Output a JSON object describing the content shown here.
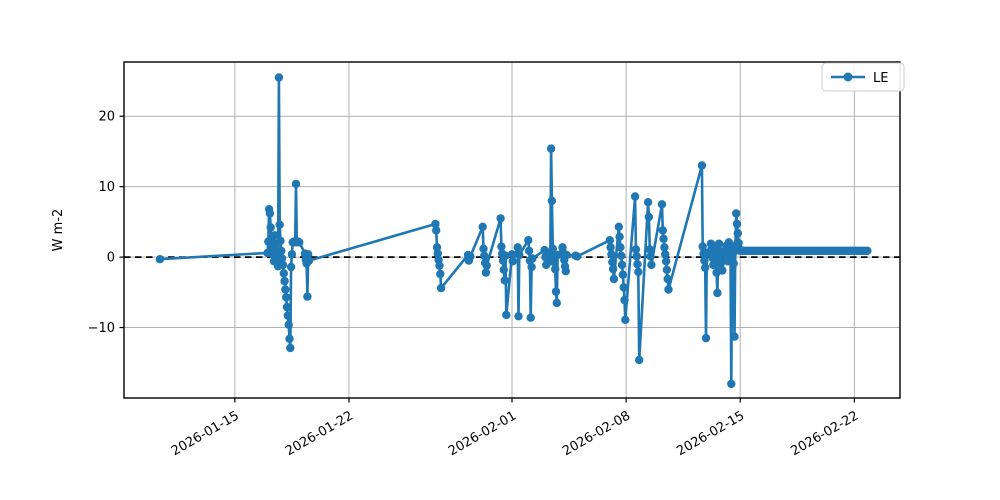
{
  "figure": {
    "background": "#ffffff",
    "legend": {
      "label": "LE",
      "position": "upper right"
    }
  },
  "chart_data": {
    "type": "line",
    "title": "",
    "xlabel": "",
    "ylabel": "W m-2",
    "grid": true,
    "grid_color": "#b0b0b0",
    "x_unit": "days since 2026-01-01",
    "xlim": [
      7.2,
      54.8
    ],
    "ylim": [
      -20.0,
      27.7
    ],
    "yticks": [
      {
        "v": -10,
        "label": "−10"
      },
      {
        "v": 0,
        "label": "0"
      },
      {
        "v": 10,
        "label": "10"
      },
      {
        "v": 20,
        "label": "20"
      }
    ],
    "xticks": [
      {
        "v": 14,
        "label": "2026-01-15"
      },
      {
        "v": 21,
        "label": "2026-01-22"
      },
      {
        "v": 31,
        "label": "2026-02-01"
      },
      {
        "v": 38,
        "label": "2026-02-08"
      },
      {
        "v": 45,
        "label": "2026-02-15"
      },
      {
        "v": 52,
        "label": "2026-02-22"
      }
    ],
    "zero_line": {
      "value": 0,
      "style": "dashed",
      "color": "#000000"
    },
    "series": [
      {
        "name": "LE",
        "color": "#1f77b4",
        "marker": "circle",
        "points": [
          [
            9.4,
            -0.3
          ],
          [
            16.0,
            0.6
          ],
          [
            16.05,
            2.2
          ],
          [
            16.1,
            6.8
          ],
          [
            16.15,
            6.2
          ],
          [
            16.2,
            4.2
          ],
          [
            16.25,
            2.6
          ],
          [
            16.3,
            1.2
          ],
          [
            16.35,
            0.3
          ],
          [
            16.4,
            -0.6
          ],
          [
            16.45,
            3.1
          ],
          [
            16.5,
            1.6
          ],
          [
            16.55,
            0.4
          ],
          [
            16.6,
            -0.4
          ],
          [
            16.65,
            -1.3
          ],
          [
            16.7,
            25.5
          ],
          [
            16.75,
            4.6
          ],
          [
            16.8,
            2.3
          ],
          [
            16.85,
            0.9
          ],
          [
            16.9,
            -0.2
          ],
          [
            16.95,
            -1.1
          ],
          [
            17.0,
            -2.3
          ],
          [
            17.05,
            -3.4
          ],
          [
            17.1,
            -4.6
          ],
          [
            17.15,
            -5.7
          ],
          [
            17.2,
            -7.1
          ],
          [
            17.25,
            -8.3
          ],
          [
            17.3,
            -9.6
          ],
          [
            17.35,
            -11.6
          ],
          [
            17.4,
            -12.9
          ],
          [
            17.45,
            -1.4
          ],
          [
            17.5,
            0.4
          ],
          [
            17.55,
            2.1
          ],
          [
            17.62,
            2.2
          ],
          [
            17.7,
            2.1
          ],
          [
            17.75,
            10.4
          ],
          [
            17.8,
            2.1
          ],
          [
            17.88,
            2.2
          ],
          [
            17.95,
            2.1
          ],
          [
            18.3,
            0.5
          ],
          [
            18.35,
            -0.4
          ],
          [
            18.4,
            -0.9
          ],
          [
            18.45,
            -5.6
          ],
          [
            18.5,
            0.4
          ],
          [
            18.55,
            -0.5
          ],
          [
            26.3,
            4.7
          ],
          [
            26.35,
            3.8
          ],
          [
            26.4,
            1.4
          ],
          [
            26.45,
            0.5
          ],
          [
            26.5,
            -0.4
          ],
          [
            26.55,
            -1.2
          ],
          [
            26.6,
            -2.4
          ],
          [
            26.65,
            -4.4
          ],
          [
            28.3,
            0.3
          ],
          [
            28.35,
            -0.5
          ],
          [
            28.45,
            0.1
          ],
          [
            29.2,
            4.3
          ],
          [
            29.25,
            1.2
          ],
          [
            29.3,
            0.2
          ],
          [
            29.35,
            -0.8
          ],
          [
            29.4,
            -2.2
          ],
          [
            29.45,
            -1.2
          ],
          [
            30.3,
            5.5
          ],
          [
            30.35,
            1.5
          ],
          [
            30.4,
            0.5
          ],
          [
            30.45,
            -0.5
          ],
          [
            30.5,
            -1.8
          ],
          [
            30.55,
            -3.3
          ],
          [
            30.6,
            0.2
          ],
          [
            30.65,
            -8.2
          ],
          [
            31.0,
            0.4
          ],
          [
            31.05,
            -0.6
          ],
          [
            31.35,
            1.4
          ],
          [
            31.4,
            -8.4
          ],
          [
            31.45,
            0.3
          ],
          [
            32.0,
            2.4
          ],
          [
            32.05,
            0.9
          ],
          [
            32.1,
            -0.5
          ],
          [
            32.15,
            -8.6
          ],
          [
            32.2,
            -1.4
          ],
          [
            32.25,
            -0.2
          ],
          [
            33.0,
            1.0
          ],
          [
            33.05,
            0.0
          ],
          [
            33.1,
            -1.1
          ],
          [
            33.3,
            0.6
          ],
          [
            33.35,
            -0.6
          ],
          [
            33.4,
            15.4
          ],
          [
            33.45,
            8.0
          ],
          [
            33.5,
            1.2
          ],
          [
            33.55,
            0.3
          ],
          [
            33.6,
            -0.7
          ],
          [
            33.65,
            -1.7
          ],
          [
            33.7,
            -4.9
          ],
          [
            33.75,
            -6.5
          ],
          [
            33.8,
            0.3
          ],
          [
            34.1,
            1.4
          ],
          [
            34.15,
            0.6
          ],
          [
            34.2,
            -0.4
          ],
          [
            34.25,
            -1.3
          ],
          [
            34.3,
            -2.0
          ],
          [
            34.35,
            0.3
          ],
          [
            34.9,
            0.2
          ],
          [
            35.0,
            0.1
          ],
          [
            37.0,
            2.4
          ],
          [
            37.05,
            1.4
          ],
          [
            37.1,
            0.4
          ],
          [
            37.15,
            -0.7
          ],
          [
            37.2,
            -1.7
          ],
          [
            37.25,
            -3.1
          ],
          [
            37.55,
            4.3
          ],
          [
            37.6,
            2.9
          ],
          [
            37.65,
            1.4
          ],
          [
            37.7,
            0.2
          ],
          [
            37.75,
            -1.1
          ],
          [
            37.8,
            -2.5
          ],
          [
            37.85,
            -4.3
          ],
          [
            37.9,
            -6.1
          ],
          [
            37.95,
            -8.9
          ],
          [
            38.55,
            8.6
          ],
          [
            38.6,
            1.1
          ],
          [
            38.65,
            0.1
          ],
          [
            38.7,
            -1.0
          ],
          [
            38.75,
            -2.1
          ],
          [
            38.8,
            -14.6
          ],
          [
            39.35,
            7.8
          ],
          [
            39.4,
            5.7
          ],
          [
            39.45,
            1.1
          ],
          [
            39.5,
            0.1
          ],
          [
            39.55,
            -1.1
          ],
          [
            40.2,
            7.5
          ],
          [
            40.25,
            3.8
          ],
          [
            40.3,
            2.6
          ],
          [
            40.35,
            1.4
          ],
          [
            40.4,
            0.4
          ],
          [
            40.45,
            -0.6
          ],
          [
            40.5,
            -1.8
          ],
          [
            40.55,
            -3.1
          ],
          [
            40.6,
            -4.6
          ],
          [
            42.65,
            13.0
          ],
          [
            42.7,
            1.5
          ],
          [
            42.75,
            0.5
          ],
          [
            42.8,
            -0.5
          ],
          [
            42.85,
            -1.5
          ],
          [
            42.9,
            -11.5
          ],
          [
            42.95,
            0.6
          ],
          [
            43.2,
            1.9
          ],
          [
            43.25,
            0.9
          ],
          [
            43.3,
            -0.1
          ],
          [
            43.35,
            -1.1
          ],
          [
            43.4,
            0.6
          ],
          [
            43.45,
            1.6
          ],
          [
            43.5,
            -0.6
          ],
          [
            43.55,
            -2.2
          ],
          [
            43.6,
            -5.1
          ],
          [
            43.65,
            0.9
          ],
          [
            43.7,
            1.9
          ],
          [
            43.75,
            0.4
          ],
          [
            43.8,
            -0.9
          ],
          [
            43.85,
            0.8
          ],
          [
            43.9,
            -1.9
          ],
          [
            44.15,
            1.6
          ],
          [
            44.2,
            0.5
          ],
          [
            44.25,
            -0.6
          ],
          [
            44.3,
            2.1
          ],
          [
            44.35,
            1.1
          ],
          [
            44.4,
            0.1
          ],
          [
            44.45,
            -18.0
          ],
          [
            44.5,
            0.6
          ],
          [
            44.55,
            1.6
          ],
          [
            44.6,
            -0.9
          ],
          [
            44.65,
            -11.3
          ],
          [
            44.7,
            0.9
          ],
          [
            44.75,
            6.2
          ],
          [
            44.8,
            4.7
          ],
          [
            44.85,
            3.4
          ],
          [
            44.9,
            2.0
          ],
          [
            44.95,
            1.2
          ]
        ],
        "flat_segment": {
          "start": 45.0,
          "end": 52.8,
          "value": 0.9,
          "step": 0.12
        }
      }
    ]
  }
}
